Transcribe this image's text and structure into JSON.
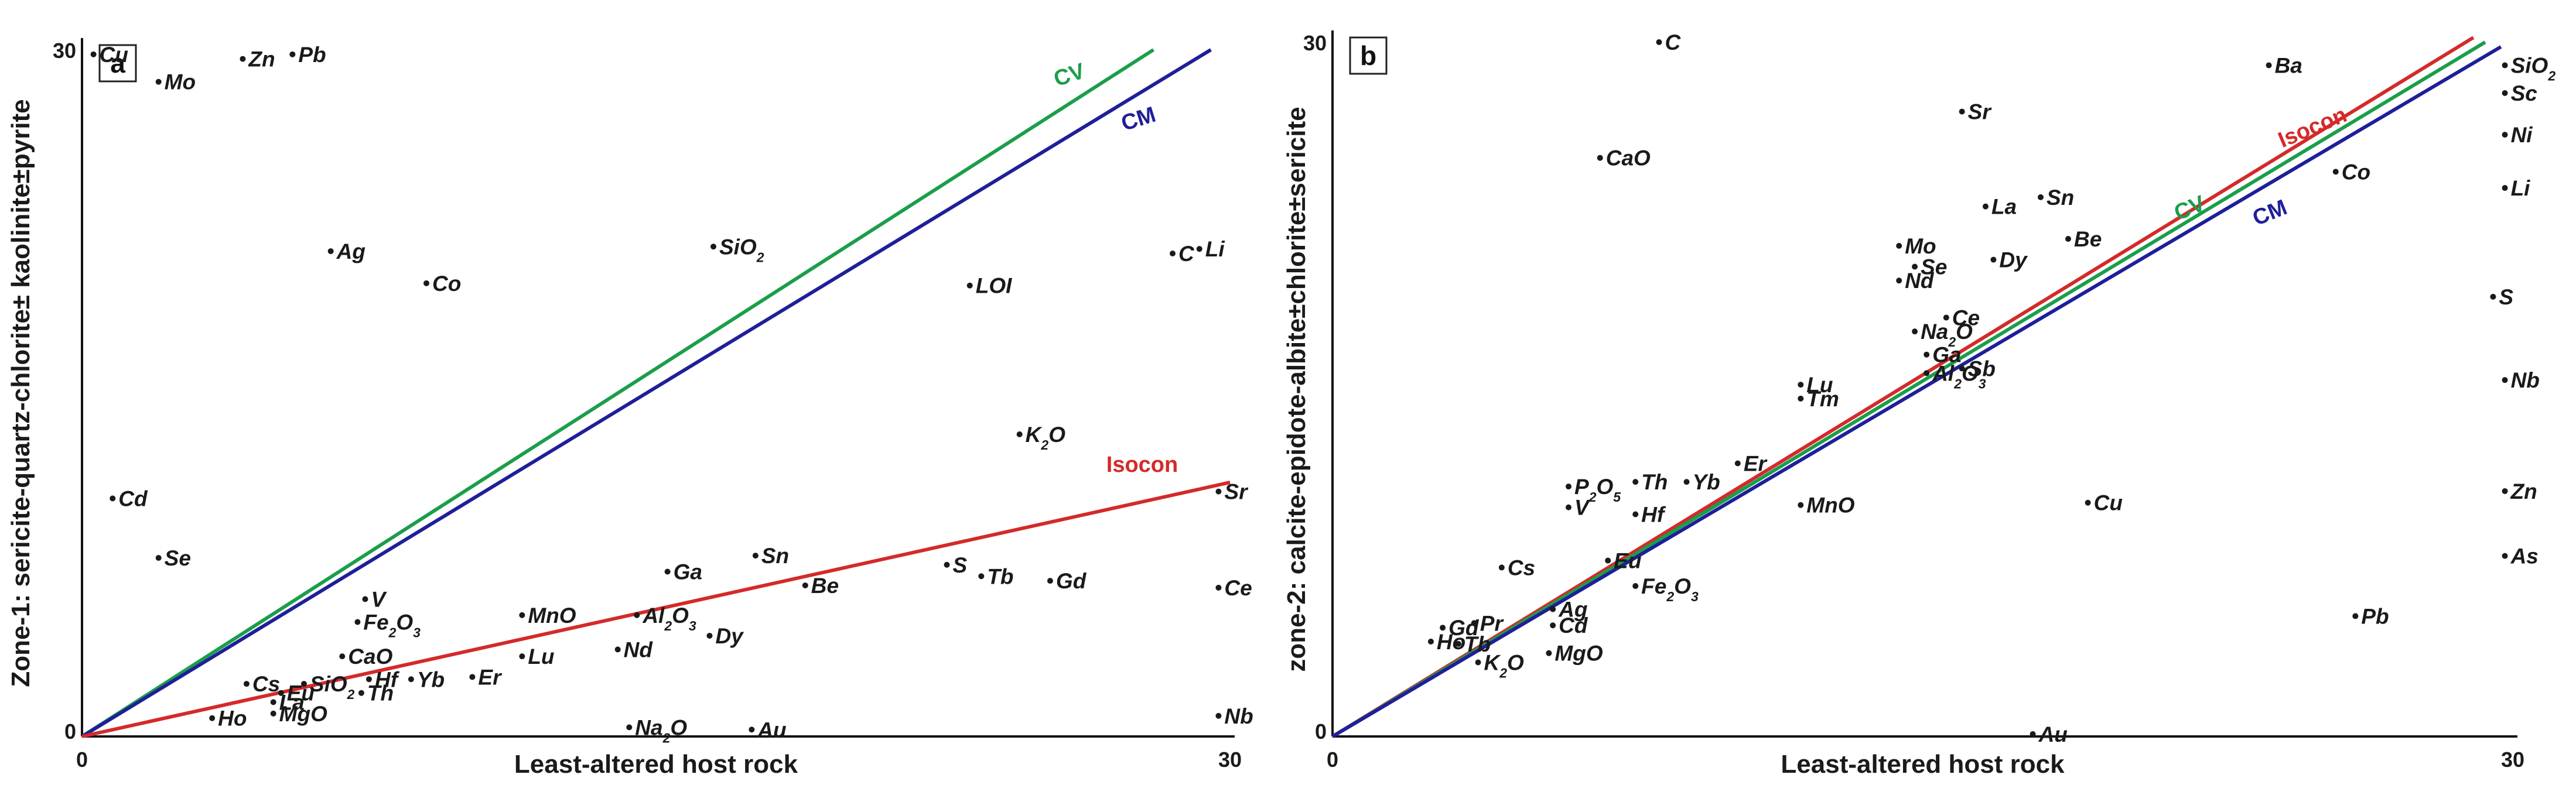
{
  "chart_data": [
    {
      "type": "scatter",
      "panel": "a",
      "ylabel": "Zone-1: sericite-quartz-chlorite± kaolinite±pyrite",
      "xlabel": "Least-altered host rock",
      "xlim": [
        0,
        30
      ],
      "ylim": [
        0,
        30
      ],
      "x_ticks": [
        "0",
        "30"
      ],
      "y_ticks": [
        "0",
        "30"
      ],
      "lines": [
        {
          "name": "CV",
          "color": "#1a9e4a",
          "from": [
            0,
            0
          ],
          "to": [
            28,
            30
          ]
        },
        {
          "name": "CM",
          "color": "#1f1f99",
          "from": [
            0,
            0
          ],
          "to": [
            29.5,
            30
          ]
        },
        {
          "name": "Isocon",
          "color": "#d42a2a",
          "from": [
            0,
            0
          ],
          "to": [
            30,
            11.1
          ]
        }
      ],
      "points": [
        {
          "label": "Cu",
          "x": 0.3,
          "y": 29.8
        },
        {
          "label": "Mo",
          "x": 2.0,
          "y": 28.6
        },
        {
          "label": "Zn",
          "x": 4.2,
          "y": 29.6
        },
        {
          "label": "Pb",
          "x": 5.5,
          "y": 29.8
        },
        {
          "label": "Ag",
          "x": 6.5,
          "y": 21.2
        },
        {
          "label": "Co",
          "x": 9.0,
          "y": 19.8
        },
        {
          "label": "SiO2",
          "x": 16.5,
          "y": 21.4
        },
        {
          "label": "LOI",
          "x": 23.2,
          "y": 19.7
        },
        {
          "label": "C",
          "x": 28.5,
          "y": 21.1
        },
        {
          "label": "Li",
          "x": 29.2,
          "y": 21.3
        },
        {
          "label": "K2O",
          "x": 24.5,
          "y": 13.2
        },
        {
          "label": "Cd",
          "x": 0.8,
          "y": 10.4
        },
        {
          "label": "Sr",
          "x": 29.7,
          "y": 10.7
        },
        {
          "label": "Se",
          "x": 2.0,
          "y": 7.8
        },
        {
          "label": "Ga",
          "x": 15.3,
          "y": 7.2
        },
        {
          "label": "Sn",
          "x": 17.6,
          "y": 7.9
        },
        {
          "label": "Be",
          "x": 18.9,
          "y": 6.6
        },
        {
          "label": "S",
          "x": 22.6,
          "y": 7.5
        },
        {
          "label": "Tb",
          "x": 23.5,
          "y": 7.0
        },
        {
          "label": "Gd",
          "x": 25.3,
          "y": 6.8
        },
        {
          "label": "Ce",
          "x": 29.7,
          "y": 6.5
        },
        {
          "label": "V",
          "x": 7.4,
          "y": 6.0
        },
        {
          "label": "Fe2O3",
          "x": 7.2,
          "y": 5.0
        },
        {
          "label": "MnO",
          "x": 11.5,
          "y": 5.3
        },
        {
          "label": "Al2O3",
          "x": 14.5,
          "y": 5.3
        },
        {
          "label": "Dy",
          "x": 16.4,
          "y": 4.4
        },
        {
          "label": "Nd",
          "x": 14.0,
          "y": 3.8
        },
        {
          "label": "Lu",
          "x": 11.5,
          "y": 3.5
        },
        {
          "label": "CaO",
          "x": 6.8,
          "y": 3.5
        },
        {
          "label": "Er",
          "x": 10.2,
          "y": 2.6
        },
        {
          "label": "Yb",
          "x": 8.6,
          "y": 2.5
        },
        {
          "label": "Hf",
          "x": 7.5,
          "y": 2.5
        },
        {
          "label": "Th",
          "x": 7.3,
          "y": 1.9
        },
        {
          "label": "SiO2",
          "x": 5.8,
          "y": 2.3
        },
        {
          "label": "Cs",
          "x": 4.3,
          "y": 2.3
        },
        {
          "label": "Eu",
          "x": 5.2,
          "y": 1.9
        },
        {
          "label": "La",
          "x": 5.0,
          "y": 1.5
        },
        {
          "label": "MgO",
          "x": 5.0,
          "y": 1.0
        },
        {
          "label": "Ho",
          "x": 3.4,
          "y": 0.8
        },
        {
          "label": "Na2O",
          "x": 14.3,
          "y": 0.4
        },
        {
          "label": "Au",
          "x": 17.5,
          "y": 0.3
        },
        {
          "label": "Nb",
          "x": 29.7,
          "y": 0.9
        }
      ]
    },
    {
      "type": "scatter",
      "panel": "b",
      "ylabel": "zone-2: calcite-epidote-albite±chlorite±sericite",
      "xlabel": "Least-altered host rock",
      "xlim": [
        0,
        30
      ],
      "ylim": [
        0,
        30
      ],
      "x_ticks": [
        "0",
        "30"
      ],
      "y_ticks": [
        "0",
        "30"
      ],
      "lines": [
        {
          "name": "Isocon",
          "color": "#d42a2a",
          "from": [
            0,
            0
          ],
          "to": [
            29.0,
            30.2
          ]
        },
        {
          "name": "CV",
          "color": "#1a9e4a",
          "from": [
            0,
            0
          ],
          "to": [
            29.3,
            30.0
          ]
        },
        {
          "name": "CM",
          "color": "#1f1f99",
          "from": [
            0,
            0
          ],
          "to": [
            29.7,
            29.8
          ]
        }
      ],
      "points": [
        {
          "label": "C",
          "x": 8.3,
          "y": 30.0
        },
        {
          "label": "Ba",
          "x": 23.8,
          "y": 29.0
        },
        {
          "label": "SiO2",
          "x": 29.8,
          "y": 29.0
        },
        {
          "label": "Sc",
          "x": 29.8,
          "y": 27.8
        },
        {
          "label": "Sr",
          "x": 16.0,
          "y": 27.0
        },
        {
          "label": "Ni",
          "x": 29.8,
          "y": 26.0
        },
        {
          "label": "CaO",
          "x": 6.8,
          "y": 25.0
        },
        {
          "label": "Co",
          "x": 25.5,
          "y": 24.4
        },
        {
          "label": "Li",
          "x": 29.8,
          "y": 23.7
        },
        {
          "label": "Sn",
          "x": 18.0,
          "y": 23.3
        },
        {
          "label": "La",
          "x": 16.6,
          "y": 22.9
        },
        {
          "label": "Be",
          "x": 18.7,
          "y": 21.5
        },
        {
          "label": "Mo",
          "x": 14.4,
          "y": 21.2
        },
        {
          "label": "Dy",
          "x": 16.8,
          "y": 20.6
        },
        {
          "label": "Se",
          "x": 14.8,
          "y": 20.3
        },
        {
          "label": "Nd",
          "x": 14.4,
          "y": 19.7
        },
        {
          "label": "S",
          "x": 29.5,
          "y": 19.0
        },
        {
          "label": "Ce",
          "x": 15.6,
          "y": 18.1
        },
        {
          "label": "Na2O",
          "x": 14.8,
          "y": 17.5
        },
        {
          "label": "Ga",
          "x": 15.1,
          "y": 16.5
        },
        {
          "label": "Sb",
          "x": 16.0,
          "y": 15.9
        },
        {
          "label": "Al2O3",
          "x": 15.1,
          "y": 15.7
        },
        {
          "label": "Nb",
          "x": 29.8,
          "y": 15.4
        },
        {
          "label": "Lu",
          "x": 11.9,
          "y": 15.2
        },
        {
          "label": "Tm",
          "x": 11.9,
          "y": 14.6
        },
        {
          "label": "Er",
          "x": 10.3,
          "y": 11.8
        },
        {
          "label": "P2O5",
          "x": 6.0,
          "y": 10.8
        },
        {
          "label": "Th",
          "x": 7.7,
          "y": 11.0
        },
        {
          "label": "Yb",
          "x": 9.0,
          "y": 11.0
        },
        {
          "label": "Zn",
          "x": 29.8,
          "y": 10.6
        },
        {
          "label": "V",
          "x": 6.0,
          "y": 9.9
        },
        {
          "label": "Hf",
          "x": 7.7,
          "y": 9.6
        },
        {
          "label": "MnO",
          "x": 11.9,
          "y": 10.0
        },
        {
          "label": "Cu",
          "x": 19.2,
          "y": 10.1
        },
        {
          "label": "As",
          "x": 29.8,
          "y": 7.8
        },
        {
          "label": "Cs",
          "x": 4.3,
          "y": 7.3
        },
        {
          "label": "Eu",
          "x": 7.0,
          "y": 7.6
        },
        {
          "label": "Fe2O3",
          "x": 7.7,
          "y": 6.5
        },
        {
          "label": "Ag",
          "x": 5.6,
          "y": 5.5
        },
        {
          "label": "Pb",
          "x": 26.0,
          "y": 5.2
        },
        {
          "label": "Cd",
          "x": 5.6,
          "y": 4.8
        },
        {
          "label": "Gd",
          "x": 2.8,
          "y": 4.7
        },
        {
          "label": "Pr",
          "x": 3.6,
          "y": 4.9
        },
        {
          "label": "Ho",
          "x": 2.5,
          "y": 4.1
        },
        {
          "label": "Tb",
          "x": 3.2,
          "y": 4.0
        },
        {
          "label": "MgO",
          "x": 5.5,
          "y": 3.6
        },
        {
          "label": "K2O",
          "x": 3.7,
          "y": 3.2
        },
        {
          "label": "Au",
          "x": 17.8,
          "y": 0.1
        }
      ]
    }
  ]
}
